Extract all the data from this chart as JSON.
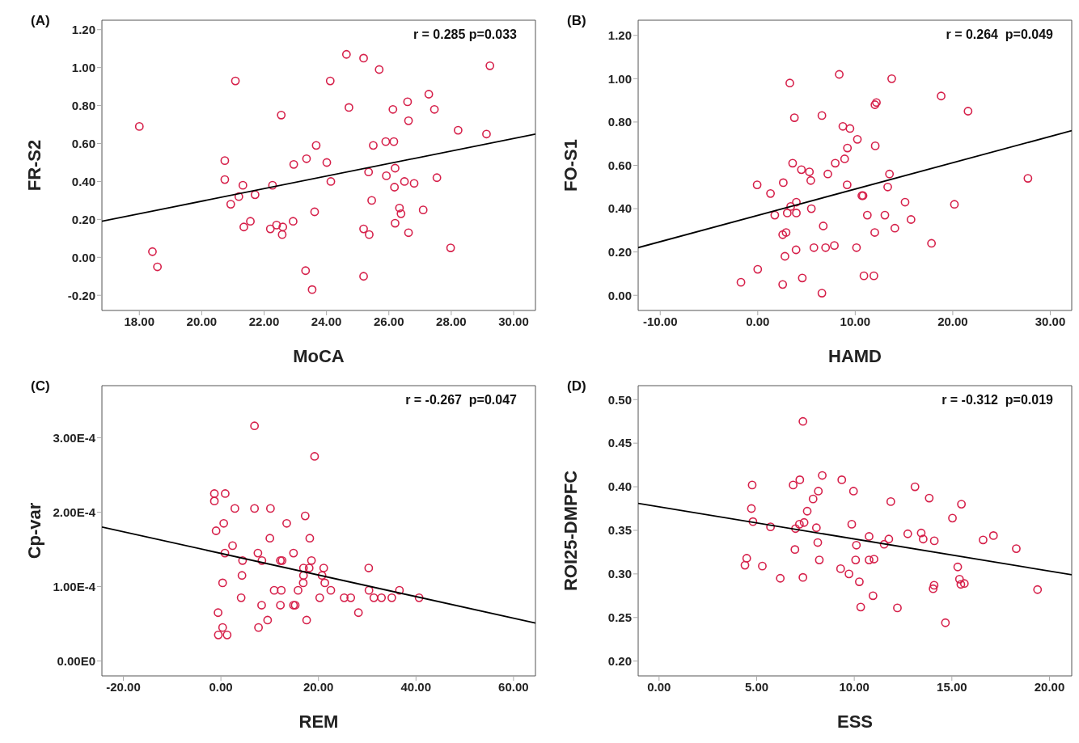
{
  "chart_data": [
    {
      "type": "scatter",
      "title": "(A)",
      "xlabel": "MoCA",
      "ylabel": "FR-S2",
      "annotations": [
        "r = 0.285 p=0.033"
      ],
      "xlim": [
        16.8,
        30.7
      ],
      "ylim": [
        -0.28,
        1.25
      ],
      "xticks": [
        {
          "value": 18,
          "label": "18.00"
        },
        {
          "value": 20,
          "label": "20.00"
        },
        {
          "value": 22,
          "label": "22.00"
        },
        {
          "value": 24,
          "label": "24.00"
        },
        {
          "value": 26,
          "label": "26.00"
        },
        {
          "value": 28,
          "label": "28.00"
        },
        {
          "value": 30,
          "label": "30.00"
        }
      ],
      "yticks": [
        {
          "value": -0.2,
          "label": "-0.20"
        },
        {
          "value": 0,
          "label": "0.00"
        },
        {
          "value": 0.2,
          "label": "0.20"
        },
        {
          "value": 0.4,
          "label": "0.40"
        },
        {
          "value": 0.6,
          "label": "0.60"
        },
        {
          "value": 0.8,
          "label": "0.80"
        },
        {
          "value": 1.0,
          "label": "1.00"
        },
        {
          "value": 1.2,
          "label": "1.20"
        }
      ],
      "series": [
        {
          "color": "#d6204a",
          "marker": "circle",
          "x": [
            18.0,
            18.42,
            18.58,
            21.08,
            20.74,
            20.74,
            21.32,
            21.19,
            20.93,
            21.71,
            21.35,
            21.56,
            22.55,
            22.27,
            22.2,
            22.4,
            22.6,
            22.58,
            22.95,
            22.93,
            23.36,
            23.33,
            23.54,
            23.62,
            23.67,
            24.01,
            24.14,
            24.12,
            24.64,
            24.72,
            25.19,
            25.69,
            25.35,
            25.19,
            25.37,
            25.45,
            25.5,
            25.19,
            25.9,
            25.92,
            26.16,
            26.13,
            26.18,
            26.2,
            26.2,
            26.34,
            26.39,
            26.5,
            26.6,
            26.63,
            26.63,
            26.81,
            27.1,
            27.28,
            27.46,
            27.54,
            27.98,
            28.22,
            29.13,
            29.24
          ],
          "values": [
            0.69,
            0.03,
            -0.05,
            0.93,
            0.51,
            0.41,
            0.38,
            0.32,
            0.28,
            0.33,
            0.16,
            0.19,
            0.75,
            0.38,
            0.15,
            0.17,
            0.16,
            0.12,
            0.49,
            0.19,
            0.52,
            -0.07,
            -0.17,
            0.24,
            0.59,
            0.5,
            0.4,
            0.93,
            1.07,
            0.79,
            1.05,
            0.99,
            0.45,
            0.15,
            0.12,
            0.3,
            0.59,
            -0.1,
            0.61,
            0.43,
            0.61,
            0.78,
            0.37,
            0.47,
            0.18,
            0.26,
            0.23,
            0.4,
            0.82,
            0.72,
            0.13,
            0.39,
            0.25,
            0.86,
            0.78,
            0.42,
            0.05,
            0.67,
            0.65,
            1.01
          ]
        },
        {
          "type": "line",
          "color": "#000000",
          "x": [
            16.8,
            30.7
          ],
          "values": [
            0.19,
            0.65
          ]
        }
      ]
    },
    {
      "type": "scatter",
      "title": "(B)",
      "xlabel": "HAMD",
      "ylabel": "FO-S1",
      "annotations": [
        "r = 0.264  p=0.049"
      ],
      "xlim": [
        -12.26,
        32.2
      ],
      "ylim": [
        -0.07,
        1.27
      ],
      "xticks": [
        {
          "value": -10,
          "label": "-10.00"
        },
        {
          "value": 0,
          "label": "0.00"
        },
        {
          "value": 10,
          "label": "10.00"
        },
        {
          "value": 20,
          "label": "20.00"
        },
        {
          "value": 30,
          "label": "30.00"
        }
      ],
      "yticks": [
        {
          "value": 0,
          "label": "0.00"
        },
        {
          "value": 0.2,
          "label": "0.20"
        },
        {
          "value": 0.4,
          "label": "0.40"
        },
        {
          "value": 0.6,
          "label": "0.60"
        },
        {
          "value": 0.8,
          "label": "0.80"
        },
        {
          "value": 1.0,
          "label": "1.00"
        },
        {
          "value": 1.2,
          "label": "1.20"
        }
      ],
      "series": [
        {
          "color": "#d6204a",
          "marker": "circle",
          "x": [
            -1.72,
            0,
            2.56,
            2.79,
            3.93,
            4.57,
            6.58,
            5.76,
            6.96,
            7.86,
            10.13,
            10.89,
            11.91,
            12.0,
            14.06,
            17.82,
            2.56,
            2.91,
            6.72,
            1.75,
            3.03,
            3.96,
            3.38,
            3.96,
            5.5,
            1.31,
            -0.06,
            2.62,
            4.48,
            5.3,
            5.44,
            7.19,
            3.58,
            7.95,
            8.91,
            9.2,
            9.17,
            10.22,
            8.73,
            9.46,
            10.68,
            10.8,
            11.24,
            12.05,
            13.04,
            13.33,
            13.51,
            15.11,
            15.72,
            20.17,
            27.71,
            3.76,
            6.58,
            12.02,
            12.17,
            3.29,
            8.36,
            13.74,
            18.81,
            21.57
          ],
          "values": [
            0.06,
            0.12,
            0.05,
            0.18,
            0.21,
            0.08,
            0.01,
            0.22,
            0.22,
            0.23,
            0.22,
            0.09,
            0.09,
            0.29,
            0.31,
            0.24,
            0.28,
            0.29,
            0.32,
            0.37,
            0.38,
            0.38,
            0.41,
            0.43,
            0.4,
            0.47,
            0.51,
            0.52,
            0.58,
            0.57,
            0.53,
            0.56,
            0.61,
            0.61,
            0.63,
            0.68,
            0.51,
            0.72,
            0.78,
            0.77,
            0.46,
            0.46,
            0.37,
            0.69,
            0.37,
            0.5,
            0.56,
            0.43,
            0.35,
            0.42,
            0.54,
            0.82,
            0.83,
            0.88,
            0.89,
            0.98,
            1.02,
            1.0,
            0.92,
            0.85
          ]
        },
        {
          "type": "line",
          "color": "#000000",
          "x": [
            -12.26,
            32.2
          ],
          "values": [
            0.22,
            0.76
          ]
        }
      ]
    },
    {
      "type": "scatter",
      "title": "(C)",
      "xlabel": "REM",
      "ylabel": "Cp-var",
      "annotations": [
        "r = -0.267  p=0.047"
      ],
      "xlim": [
        -24.4,
        64.5
      ],
      "ylim": [
        -2e-05,
        0.00037
      ],
      "xticks": [
        {
          "value": -20,
          "label": "-20.00"
        },
        {
          "value": 0,
          "label": "0.00"
        },
        {
          "value": 20,
          "label": "20.00"
        },
        {
          "value": 40,
          "label": "40.00"
        },
        {
          "value": 60,
          "label": "60.00"
        }
      ],
      "yticks": [
        {
          "value": 0,
          "label": "0.00E0"
        },
        {
          "value": 0.0001,
          "label": "1.00E-4"
        },
        {
          "value": 0.0002,
          "label": "2.00E-4"
        },
        {
          "value": 0.0003,
          "label": "3.00E-4"
        }
      ],
      "series": [
        {
          "color": "#d6204a",
          "marker": "circle",
          "x": [
            6.89,
            19.21,
            -1.34,
            -1.34,
            0.88,
            2.86,
            6.89,
            10.16,
            17.28,
            0.58,
            -0.99,
            13.49,
            10.04,
            18.22,
            2.39,
            0.82,
            7.59,
            14.89,
            4.44,
            8.41,
            12.2,
            12.55,
            18.57,
            16.93,
            18.1,
            21.08,
            30.31,
            16.93,
            20.73,
            4.32,
            16.88,
            21.31,
            0.35,
            10.92,
            12.38,
            15.82,
            22.54,
            30.36,
            36.61,
            4.15,
            20.26,
            25.28,
            26.63,
            31.36,
            32.93,
            35.04,
            40.64,
            8.35,
            12.2,
            14.89,
            15.24,
            -0.58,
            28.2,
            9.58,
            17.58,
            7.71,
            0.35,
            -0.53,
            1.28
          ],
          "values": [
            0.000316,
            0.000275,
            0.000225,
            0.000215,
            0.000225,
            0.000205,
            0.000205,
            0.000205,
            0.000195,
            0.000185,
            0.000175,
            0.000185,
            0.000165,
            0.000165,
            0.000155,
            0.000145,
            0.000145,
            0.000145,
            0.000135,
            0.000135,
            0.000135,
            0.000135,
            0.000135,
            0.000125,
            0.000125,
            0.000125,
            0.000125,
            0.000115,
            0.000115,
            0.000115,
            0.000105,
            0.000105,
            0.000105,
            9.5e-05,
            9.5e-05,
            9.5e-05,
            9.5e-05,
            9.5e-05,
            9.5e-05,
            8.5e-05,
            8.5e-05,
            8.5e-05,
            8.5e-05,
            8.5e-05,
            8.5e-05,
            8.5e-05,
            8.5e-05,
            7.5e-05,
            7.5e-05,
            7.5e-05,
            7.5e-05,
            6.5e-05,
            6.5e-05,
            5.5e-05,
            5.5e-05,
            4.5e-05,
            4.5e-05,
            3.5e-05,
            3.5e-05
          ]
        },
        {
          "type": "line",
          "color": "#000000",
          "x": [
            -24.4,
            64.5
          ],
          "values": [
            0.00018,
            5.1e-05
          ]
        }
      ]
    },
    {
      "type": "scatter",
      "title": "(D)",
      "xlabel": "ESS",
      "ylabel": "ROI25-DMPFC",
      "annotations": [
        "r = -0.312  p=0.019"
      ],
      "xlim": [
        -1.07,
        21.14
      ],
      "ylim": [
        0.183,
        0.516
      ],
      "xticks": [
        {
          "value": 0,
          "label": "0.00"
        },
        {
          "value": 5,
          "label": "5.00"
        },
        {
          "value": 10,
          "label": "10.00"
        },
        {
          "value": 15,
          "label": "15.00"
        },
        {
          "value": 20,
          "label": "20.00"
        }
      ],
      "yticks": [
        {
          "value": 0.2,
          "label": "0.20"
        },
        {
          "value": 0.25,
          "label": "0.25"
        },
        {
          "value": 0.3,
          "label": "0.30"
        },
        {
          "value": 0.35,
          "label": "0.35"
        },
        {
          "value": 0.4,
          "label": "0.40"
        },
        {
          "value": 0.45,
          "label": "0.45"
        },
        {
          "value": 0.5,
          "label": "0.50"
        }
      ],
      "series": [
        {
          "color": "#d6204a",
          "marker": "circle",
          "x": [
            7.37,
            8.36,
            7.21,
            6.87,
            9.36,
            4.77,
            13.11,
            8.16,
            9.96,
            13.84,
            7.89,
            11.87,
            15.49,
            7.59,
            4.73,
            15.03,
            4.81,
            7.43,
            7.19,
            6.99,
            9.87,
            5.71,
            8.06,
            12.74,
            13.43,
            10.76,
            17.13,
            13.53,
            11.77,
            16.6,
            14.1,
            8.13,
            10.11,
            11.53,
            18.3,
            6.96,
            4.49,
            8.21,
            10.07,
            10.76,
            11.01,
            4.4,
            5.29,
            15.3,
            9.3,
            9.73,
            6.21,
            7.37,
            10.26,
            15.39,
            15.46,
            15.64,
            14.09,
            14.04,
            19.39,
            10.96,
            10.33,
            12.21,
            14.67
          ],
          "values": [
            0.475,
            0.413,
            0.408,
            0.402,
            0.408,
            0.402,
            0.4,
            0.395,
            0.395,
            0.387,
            0.386,
            0.383,
            0.38,
            0.372,
            0.375,
            0.364,
            0.36,
            0.359,
            0.357,
            0.352,
            0.357,
            0.354,
            0.353,
            0.346,
            0.347,
            0.343,
            0.344,
            0.34,
            0.34,
            0.339,
            0.338,
            0.336,
            0.333,
            0.334,
            0.329,
            0.328,
            0.318,
            0.316,
            0.316,
            0.316,
            0.317,
            0.31,
            0.309,
            0.308,
            0.306,
            0.3,
            0.295,
            0.296,
            0.291,
            0.294,
            0.288,
            0.289,
            0.287,
            0.283,
            0.282,
            0.275,
            0.262,
            0.261,
            0.244
          ]
        },
        {
          "type": "line",
          "color": "#000000",
          "x": [
            -1.07,
            21.14
          ],
          "values": [
            0.381,
            0.299
          ]
        }
      ]
    }
  ]
}
